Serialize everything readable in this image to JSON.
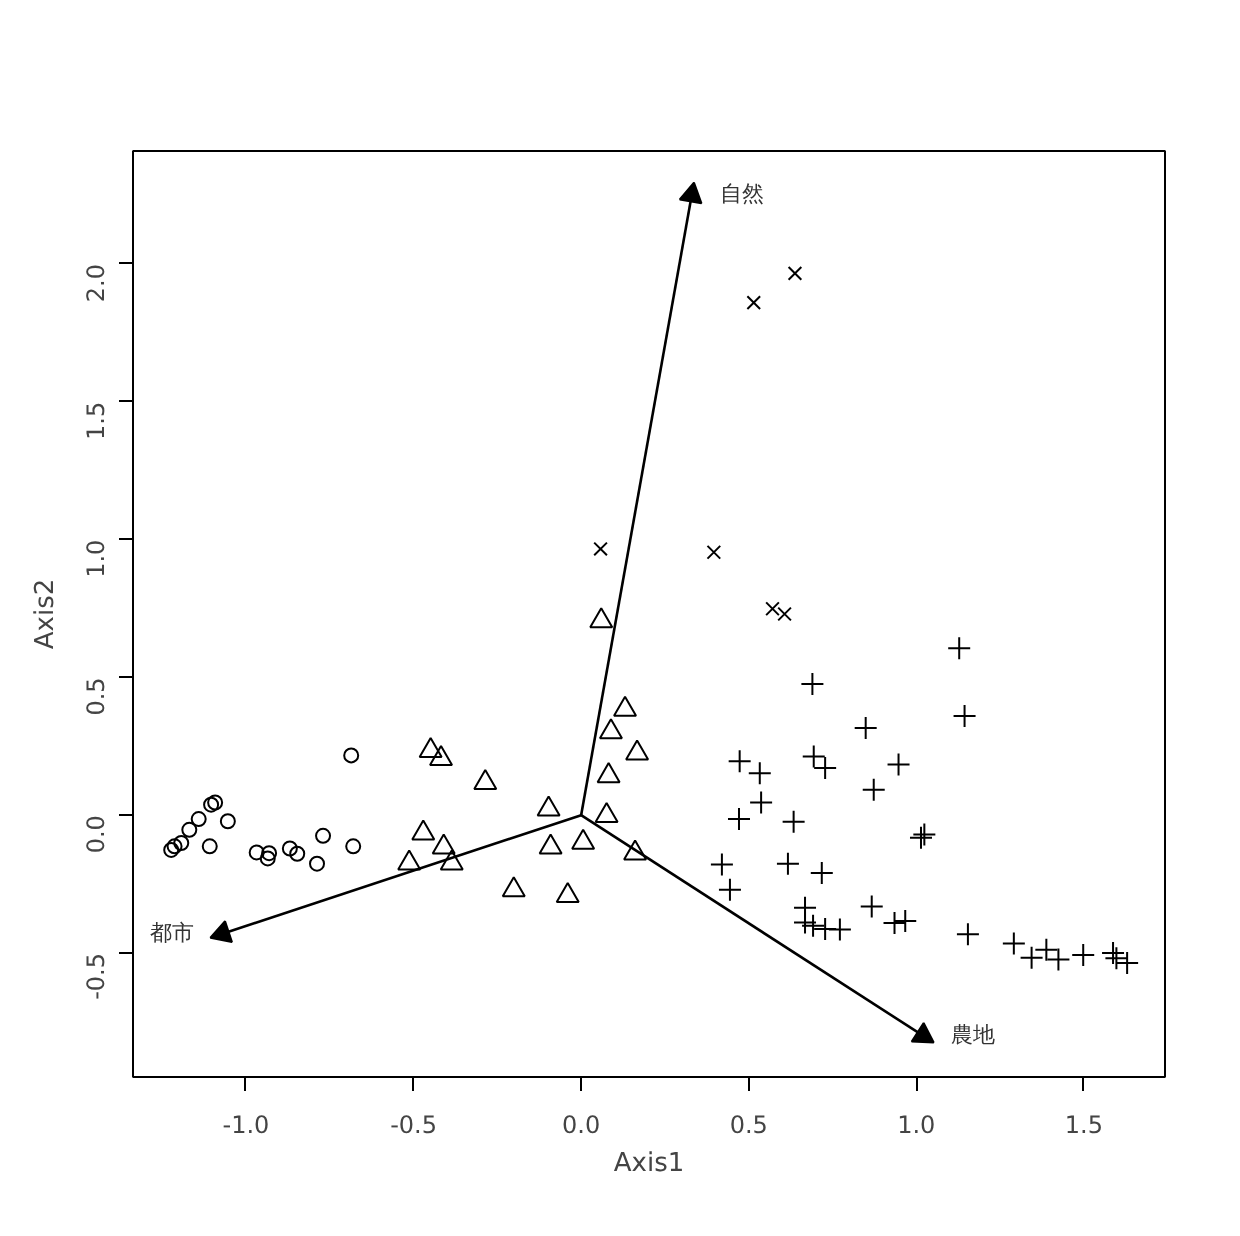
{
  "chart_data": {
    "type": "scatter",
    "xlabel": "Axis1",
    "ylabel": "Axis2",
    "xlim": [
      -1.337,
      1.742
    ],
    "ylim": [
      -0.95,
      2.41
    ],
    "xticks": [
      {
        "value": -1.0,
        "label": "-1.0"
      },
      {
        "value": -0.5,
        "label": "-0.5"
      },
      {
        "value": 0.0,
        "label": "0.0"
      },
      {
        "value": 0.5,
        "label": "0.5"
      },
      {
        "value": 1.0,
        "label": "1.0"
      },
      {
        "value": 1.5,
        "label": "1.5"
      }
    ],
    "yticks": [
      {
        "value": -0.5,
        "label": "-0.5"
      },
      {
        "value": 0.0,
        "label": "0.0"
      },
      {
        "value": 0.5,
        "label": "0.5"
      },
      {
        "value": 1.0,
        "label": "1.0"
      },
      {
        "value": 1.5,
        "label": "1.5"
      },
      {
        "value": 2.0,
        "label": "2.0"
      }
    ],
    "grid": false,
    "series": [
      {
        "color": "#000000",
        "marker": "circle",
        "x": [
          -1.223,
          -1.213,
          -1.193,
          -1.169,
          -1.141,
          -1.104,
          -1.092,
          -1.108,
          -1.054,
          -0.968,
          -0.935,
          -0.931,
          -0.869,
          -0.847,
          -0.788,
          -0.77,
          -0.686,
          -0.68
        ],
        "values": [
          -0.126,
          -0.113,
          -0.101,
          -0.053,
          -0.014,
          0.038,
          0.046,
          -0.113,
          -0.022,
          -0.135,
          -0.157,
          -0.138,
          -0.121,
          -0.14,
          -0.176,
          -0.075,
          0.217,
          -0.113
        ]
      },
      {
        "color": "#000000",
        "marker": "triangle",
        "x": [
          -0.449,
          -0.418,
          -0.286,
          -0.097,
          -0.471,
          -0.41,
          -0.513,
          -0.386,
          -0.201,
          -0.091,
          -0.04,
          0.006,
          0.076,
          0.082,
          0.089,
          0.06,
          0.131,
          0.167,
          0.161
        ],
        "values": [
          0.234,
          0.205,
          0.118,
          0.022,
          -0.065,
          -0.116,
          -0.174,
          -0.174,
          -0.271,
          -0.116,
          -0.292,
          -0.099,
          -0.002,
          0.143,
          0.302,
          0.705,
          0.384,
          0.225,
          -0.138
        ]
      },
      {
        "color": "#000000",
        "marker": "x",
        "x": [
          0.638,
          0.515,
          0.058,
          0.396,
          0.571,
          0.607
        ],
        "values": [
          1.966,
          1.86,
          0.966,
          0.954,
          0.749,
          0.73
        ]
      },
      {
        "color": "#000000",
        "marker": "cross",
        "x": [
          1.128,
          1.144,
          0.69,
          0.849,
          0.473,
          0.533,
          0.694,
          0.728,
          0.947,
          0.873,
          0.537,
          0.471,
          0.634,
          1.014,
          1.024,
          0.42,
          0.617,
          0.718,
          0.444,
          0.668,
          0.867,
          0.668,
          0.692,
          0.728,
          0.772,
          0.935,
          0.967,
          1.154,
          1.291,
          1.344,
          1.388,
          1.424,
          1.498,
          1.587,
          1.597,
          1.629
        ],
        "values": [
          0.606,
          0.36,
          0.476,
          0.316,
          0.196,
          0.152,
          0.213,
          0.171,
          0.184,
          0.092,
          0.046,
          -0.014,
          -0.024,
          -0.082,
          -0.07,
          -0.179,
          -0.176,
          -0.21,
          -0.271,
          -0.336,
          -0.331,
          -0.389,
          -0.401,
          -0.413,
          -0.415,
          -0.391,
          -0.384,
          -0.432,
          -0.466,
          -0.517,
          -0.488,
          -0.524,
          -0.507,
          -0.5,
          -0.519,
          -0.536
        ]
      },
      {
        "type": "line",
        "color": "#000000",
        "x": [
          0,
          0.33
        ],
        "values": [
          0,
          2.25
        ]
      },
      {
        "type": "line",
        "color": "#000000",
        "x": [
          0,
          -1.07
        ],
        "values": [
          0,
          -0.43
        ]
      },
      {
        "type": "line",
        "color": "#000000",
        "x": [
          0,
          1.02
        ],
        "values": [
          0,
          -0.8
        ]
      }
    ],
    "annotations": [
      "自然",
      "都市",
      "農地"
    ]
  }
}
